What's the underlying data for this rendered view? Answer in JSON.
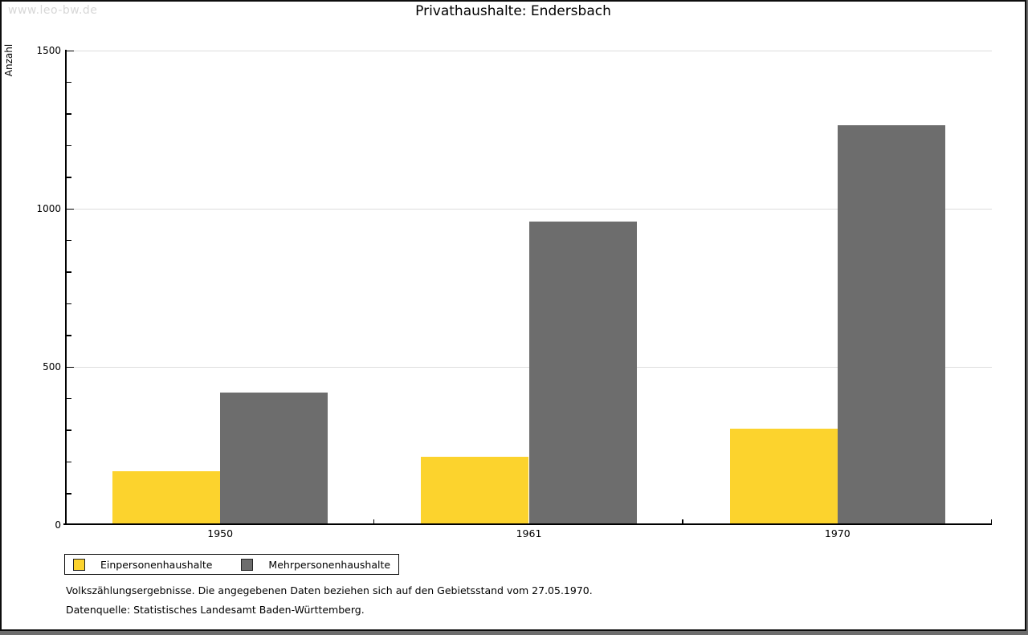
{
  "watermark": "www.leo-bw.de",
  "title": "Privathaushalte: Endersbach",
  "chart_data": {
    "type": "bar",
    "title": "Privathaushalte: Endersbach",
    "categories": [
      "1950",
      "1961",
      "1970"
    ],
    "series": [
      {
        "name": "Einpersonenhaushalte",
        "color": "#FCD32D",
        "values": [
          170,
          215,
          305
        ]
      },
      {
        "name": "Mehrpersonenhaushalte",
        "color": "#6D6D6D",
        "values": [
          420,
          960,
          1265
        ]
      }
    ],
    "xlabel": "",
    "ylabel": "Anzahl",
    "ylim": [
      0,
      1500
    ],
    "y_major_ticks": [
      0,
      500,
      1000,
      1500
    ],
    "y_minor_step": 100,
    "grid_values": [
      500,
      1000,
      1500
    ],
    "grid": true,
    "legend_position": "bottom-left",
    "bar_colors": {
      "yellow": "#FCD32D",
      "gray": "#6D6D6D"
    }
  },
  "footnotes": {
    "line1": "Volkszählungsergebnisse. Die angegebenen Daten beziehen sich auf den Gebietsstand vom 27.05.1970.",
    "line2": "Datenquelle: Statistisches Landesamt Baden-Württemberg."
  }
}
